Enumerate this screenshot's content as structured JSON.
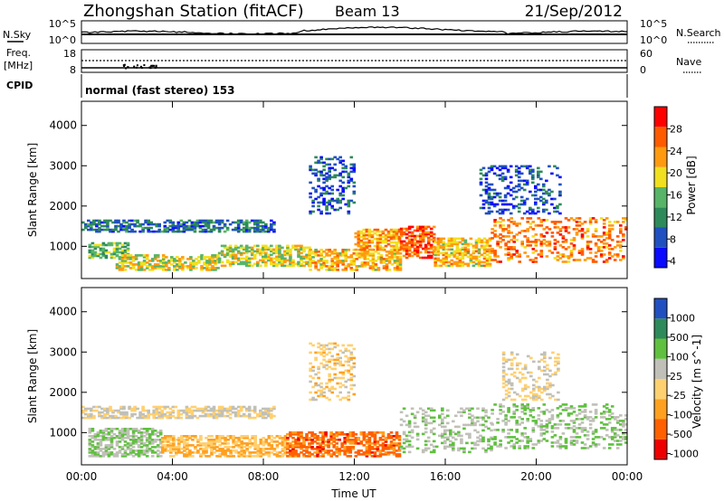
{
  "header": {
    "station": "Zhongshan Station (fitACF)",
    "beam": "Beam 13",
    "date": "21/Sep/2012"
  },
  "summary_panels": {
    "nsky_label": "N.Sky",
    "nsky_ticks": [
      "10^5",
      "10^0"
    ],
    "nsearch_label": "N.Search",
    "nsearch_ticks": [
      "10^5",
      "10^0"
    ],
    "freq_label_1": "Freq.",
    "freq_label_2": "[MHz]",
    "freq_ticks": [
      "18",
      "8"
    ],
    "nave_label": "Nave",
    "nave_ticks": [
      "60",
      "0"
    ],
    "cpid_label": "CPID",
    "cpid_text": "normal (fast stereo) 153"
  },
  "colors": {
    "power_scale": [
      "#0a0aff",
      "#2050c0",
      "#2e8a5a",
      "#58b468",
      "#f0e020",
      "#ff9a10",
      "#ff5a00",
      "#ff0000"
    ],
    "velocity_scale": [
      "#ee0000",
      "#ff6000",
      "#ffa020",
      "#ffd070",
      "#c0c0b8",
      "#60c040",
      "#2e8a5a",
      "#2050c0"
    ]
  },
  "chart_data": [
    {
      "type": "heatmap",
      "panel": "power",
      "ylabel": "Slant Range [km]",
      "yticks": [
        "4000",
        "3000",
        "2000",
        "1000"
      ],
      "ylim": [
        200,
        4600
      ],
      "xlim": [
        0,
        24
      ],
      "xticks": [
        "00:00",
        "04:00",
        "08:00",
        "12:00",
        "16:00",
        "20:00",
        "00:00"
      ],
      "colorbar": {
        "label": "Power [dB]",
        "ticks": [
          "28",
          "24",
          "20",
          "16",
          "12",
          "8",
          "4"
        ],
        "range": [
          0,
          32
        ]
      },
      "regions": [
        {
          "t0": 0.0,
          "t1": 8.5,
          "r0": 1350,
          "r1": 1650,
          "v": 8
        },
        {
          "t0": 0.3,
          "t1": 2.0,
          "r0": 700,
          "r1": 1100,
          "v": 14
        },
        {
          "t0": 1.5,
          "t1": 6.0,
          "r0": 400,
          "r1": 800,
          "v": 18
        },
        {
          "t0": 6.0,
          "t1": 10.0,
          "r0": 500,
          "r1": 1000,
          "v": 17
        },
        {
          "t0": 10.0,
          "t1": 14.0,
          "r0": 400,
          "r1": 900,
          "v": 20
        },
        {
          "t0": 12.0,
          "t1": 14.0,
          "r0": 900,
          "r1": 1400,
          "v": 22
        },
        {
          "t0": 14.0,
          "t1": 15.5,
          "r0": 700,
          "r1": 1500,
          "v": 26
        },
        {
          "t0": 15.5,
          "t1": 18.0,
          "r0": 500,
          "r1": 1200,
          "v": 20
        },
        {
          "t0": 18.0,
          "t1": 24.0,
          "r0": 600,
          "r1": 1700,
          "v": 24
        },
        {
          "t0": 10.0,
          "t1": 12.0,
          "r0": 1800,
          "r1": 3200,
          "v": 6
        },
        {
          "t0": 17.5,
          "t1": 21.0,
          "r0": 1800,
          "r1": 3000,
          "v": 6
        }
      ]
    },
    {
      "type": "heatmap",
      "panel": "velocity",
      "ylabel": "Slant Range [km]",
      "yticks": [
        "4000",
        "3000",
        "2000",
        "1000"
      ],
      "ylim": [
        200,
        4600
      ],
      "xlim": [
        0,
        24
      ],
      "xlabel": "Time UT",
      "xticks": [
        "00:00",
        "04:00",
        "08:00",
        "12:00",
        "16:00",
        "20:00",
        "00:00"
      ],
      "colorbar": {
        "label": "Velocity [m s^-1]",
        "ticks": [
          "1000",
          "500",
          "100",
          "25",
          "-25",
          "-100",
          "-500",
          "-1000"
        ],
        "range": [
          -1200,
          1200
        ]
      },
      "regions": [
        {
          "t0": 0.0,
          "t1": 8.5,
          "r0": 1350,
          "r1": 1650,
          "v": 0
        },
        {
          "t0": 0.3,
          "t1": 3.5,
          "r0": 400,
          "r1": 1100,
          "v": 300
        },
        {
          "t0": 3.5,
          "t1": 9.0,
          "r0": 400,
          "r1": 900,
          "v": -300
        },
        {
          "t0": 9.0,
          "t1": 14.0,
          "r0": 400,
          "r1": 1000,
          "v": -700
        },
        {
          "t0": 10.0,
          "t1": 12.0,
          "r0": 1800,
          "r1": 3200,
          "v": -150
        },
        {
          "t0": 14.0,
          "t1": 18.0,
          "r0": 500,
          "r1": 1600,
          "v": 250
        },
        {
          "t0": 18.0,
          "t1": 24.0,
          "r0": 600,
          "r1": 1700,
          "v": 300
        },
        {
          "t0": 18.5,
          "t1": 21.0,
          "r0": 1800,
          "r1": 3000,
          "v": 0
        }
      ]
    }
  ]
}
